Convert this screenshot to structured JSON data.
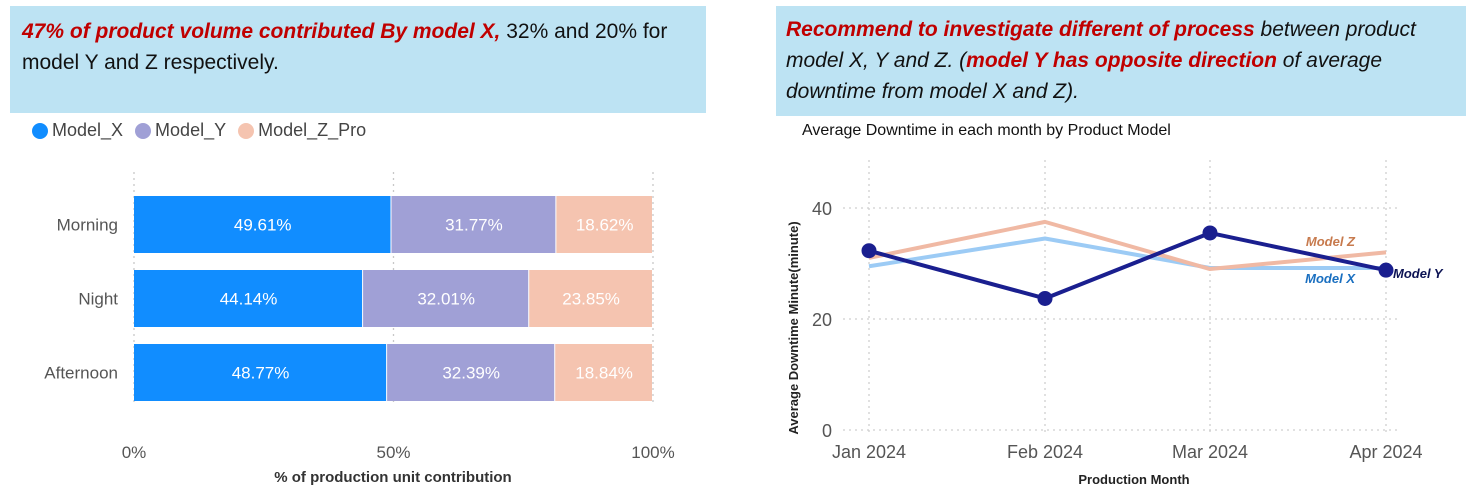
{
  "left_callout": {
    "highlight": "47% of product volume contributed By model X,",
    "rest": " 32% and 20% for model Y and Z respectively."
  },
  "right_callout": {
    "highlight1": "Recommend to investigate different of process",
    "text1": " between product model X, Y and Z. (",
    "highlight2": "model Y has opposite direction",
    "text2": " of average downtime from model X and Z)."
  },
  "colors": {
    "model_x": "#118dff",
    "model_y": "#a0a0d6",
    "model_z": "#f5c4b0",
    "line_x": "#9ccbf5",
    "line_y": "#1a1f8f",
    "line_z": "#f0b9a4",
    "label_x": "#1a6fc0",
    "label_z": "#c77a4d",
    "callout_bg": "#bde3f3",
    "highlight": "#c00000"
  },
  "chart_data": [
    {
      "type": "bar",
      "orientation": "horizontal",
      "stacked": "100%",
      "categories": [
        "Morning",
        "Night",
        "Afternoon"
      ],
      "series": [
        {
          "name": "Model_X",
          "values": [
            49.61,
            44.14,
            48.77
          ],
          "labels": [
            "49.61%",
            "44.14%",
            "48.77%"
          ]
        },
        {
          "name": "Model_Y",
          "values": [
            31.77,
            32.01,
            32.39
          ],
          "labels": [
            "31.77%",
            "32.01%",
            "32.39%"
          ]
        },
        {
          "name": "Model_Z_Pro",
          "values": [
            18.62,
            23.85,
            18.84
          ],
          "labels": [
            "18.62%",
            "23.85%",
            "18.84%"
          ]
        }
      ],
      "xticks": [
        "0%",
        "50%",
        "100%"
      ],
      "xlabel": "% of production unit contribution",
      "xlim": [
        0,
        100
      ],
      "legend": "top-left",
      "grid": true
    },
    {
      "type": "line",
      "title": "Average  Downtime in each month by Product Model",
      "categories": [
        "Jan 2024",
        "Feb 2024",
        "Mar 2024",
        "Apr 2024"
      ],
      "series": [
        {
          "name": "Model X",
          "values": [
            29.5,
            34.5,
            29.2,
            29.2
          ]
        },
        {
          "name": "Model Y",
          "values": [
            32.3,
            23.7,
            35.5,
            28.8
          ]
        },
        {
          "name": "Model Z",
          "values": [
            31.0,
            37.5,
            29.0,
            32.0
          ]
        }
      ],
      "xlabel": "Production Month",
      "ylabel": "Average Downtime Minute(minute)",
      "yticks": [
        "0",
        "20",
        "40"
      ],
      "ylim": [
        0,
        45
      ],
      "legend": "inline-labels",
      "grid": true
    }
  ]
}
